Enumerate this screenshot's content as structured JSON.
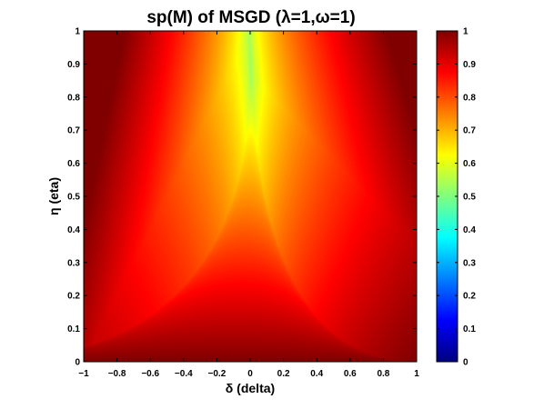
{
  "chart_data": {
    "type": "heatmap",
    "title": "sp(M) of MSGD (λ=1,ω=1)",
    "xlabel": "δ (delta)",
    "ylabel": "η (eta)",
    "xlim": [
      -1,
      1
    ],
    "ylim": [
      0,
      1
    ],
    "x_ticks": [
      "−1",
      "−0.8",
      "−0.6",
      "−0.4",
      "−0.2",
      "0",
      "0.2",
      "0.4",
      "0.6",
      "0.8",
      "1"
    ],
    "y_ticks": [
      "0",
      "0.1",
      "0.2",
      "0.3",
      "0.4",
      "0.5",
      "0.6",
      "0.7",
      "0.8",
      "0.9",
      "1"
    ],
    "x_tick_values": [
      -1,
      -0.8,
      -0.6,
      -0.4,
      -0.2,
      0,
      0.2,
      0.4,
      0.6,
      0.8,
      1
    ],
    "y_tick_values": [
      0,
      0.1,
      0.2,
      0.3,
      0.4,
      0.5,
      0.6,
      0.7,
      0.8,
      0.9,
      1
    ],
    "colorbar": {
      "colormap": "jet",
      "range": [
        0,
        1
      ],
      "ticks": [
        "0",
        "0.1",
        "0.2",
        "0.3",
        "0.4",
        "0.5",
        "0.6",
        "0.7",
        "0.8",
        "0.9",
        "1"
      ],
      "tick_values": [
        0,
        0.1,
        0.2,
        0.3,
        0.4,
        0.5,
        0.6,
        0.7,
        0.8,
        0.9,
        1
      ]
    },
    "grid": false,
    "colors": {
      "saturated": "#800000",
      "minimum": "#7fff7f"
    }
  }
}
